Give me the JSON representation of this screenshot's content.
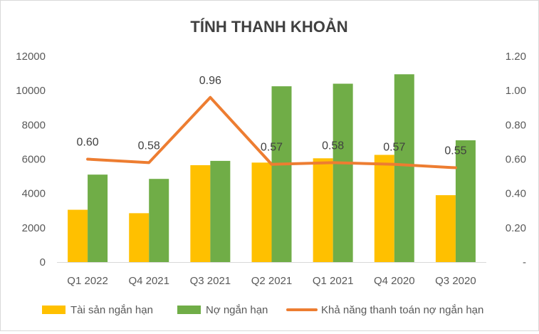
{
  "chart_data": {
    "type": "bar",
    "title": "TÍNH THANH KHOẢN",
    "categories": [
      "Q1 2022",
      "Q4 2021",
      "Q3 2021",
      "Q2 2021",
      "Q1 2021",
      "Q4 2020",
      "Q3 2020"
    ],
    "series": [
      {
        "name": "Tài sản ngắn hạn",
        "type": "bar",
        "axis": "left",
        "color": "#FFC000",
        "values": [
          3050,
          2850,
          5650,
          5800,
          6050,
          6250,
          3900
        ]
      },
      {
        "name": "Nợ ngắn hạn",
        "type": "bar",
        "axis": "left",
        "color": "#70AD47",
        "values": [
          5100,
          4850,
          5900,
          10250,
          10400,
          10950,
          7100
        ]
      },
      {
        "name": "Khả năng thanh toán nợ ngắn hạn",
        "type": "line",
        "axis": "right",
        "color": "#ED7D31",
        "values": [
          0.6,
          0.58,
          0.96,
          0.57,
          0.58,
          0.57,
          0.55
        ],
        "labels": [
          "0.60",
          "0.58",
          "0.96",
          "0.57",
          "0.58",
          "0.57",
          "0.55"
        ]
      }
    ],
    "y_left": {
      "ylim": [
        0,
        12000
      ],
      "ticks": [
        "0",
        "2000",
        "4000",
        "6000",
        "8000",
        "10000",
        "12000"
      ]
    },
    "y_right": {
      "ylim": [
        0,
        1.2
      ],
      "ticks": [
        "-",
        "0.20",
        "0.40",
        "0.60",
        "0.80",
        "1.00",
        "1.20"
      ]
    },
    "grid": false,
    "legend": "bottom"
  }
}
